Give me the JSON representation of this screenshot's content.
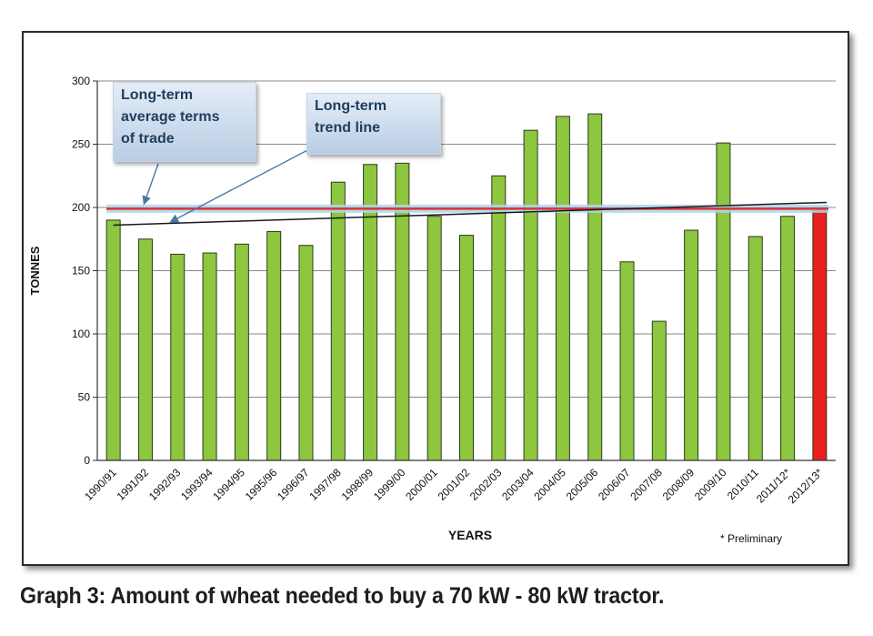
{
  "caption": "Graph 3: Amount of wheat needed to buy a 70 kW - 80 kW tractor.",
  "chart_data": {
    "type": "bar",
    "title": "",
    "xlabel": "YEARS",
    "ylabel": "TONNES",
    "ylim": [
      0,
      300
    ],
    "yticks": [
      0,
      50,
      100,
      150,
      200,
      250,
      300
    ],
    "grid": true,
    "categories": [
      "1990/91",
      "1991/92",
      "1992/93",
      "1993/94",
      "1994/95",
      "1995/96",
      "1996/97",
      "1997/98",
      "1998/99",
      "1999/00",
      "2000/01",
      "2001/02",
      "2002/03",
      "2003/04",
      "2004/05",
      "2005/06",
      "2006/07",
      "2007/08",
      "2008/09",
      "2009/10",
      "2010/11",
      "2011/12*",
      "2012/13*"
    ],
    "values": [
      190,
      175,
      163,
      164,
      171,
      181,
      170,
      220,
      234,
      235,
      193,
      178,
      225,
      261,
      272,
      274,
      157,
      110,
      182,
      251,
      177,
      193,
      200
    ],
    "bar_color": "#8dc63f",
    "highlight_color": "#e82020",
    "highlight_index": 22,
    "average_line": {
      "value": 199,
      "color": "#e03030",
      "glow_color": "#a8d8f0"
    },
    "trend_line": {
      "start": 186,
      "end": 204,
      "color": "#1a1a1a"
    },
    "note": "* Preliminary",
    "callouts": [
      {
        "lines": [
          "Long-term",
          "average terms",
          "of trade"
        ],
        "target_category": 2,
        "target_value": 199
      },
      {
        "lines": [
          "Long-term",
          "trend line"
        ],
        "target_category": 2,
        "target_value": 187
      }
    ]
  }
}
